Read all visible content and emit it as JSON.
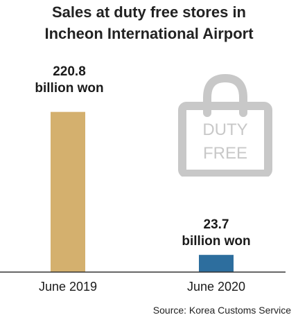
{
  "chart_data": {
    "type": "bar",
    "title_lines": [
      "Sales at duty free stores in",
      "Incheon International Airport"
    ],
    "categories": [
      "June 2019",
      "June 2020"
    ],
    "values": [
      220.8,
      23.7
    ],
    "value_labels": [
      [
        "220.8",
        "billion won"
      ],
      [
        "23.7",
        "billion won"
      ]
    ],
    "bar_colors": [
      "#d4b06e",
      "#2d6e9e"
    ],
    "ylim": [
      0,
      230
    ],
    "xlabel": "",
    "ylabel": "",
    "grid": false,
    "source": "Source: Korea Customs Service"
  },
  "illustration": {
    "icon": "shopping-bag-icon",
    "text_lines": [
      "DUTY",
      "FREE"
    ]
  }
}
